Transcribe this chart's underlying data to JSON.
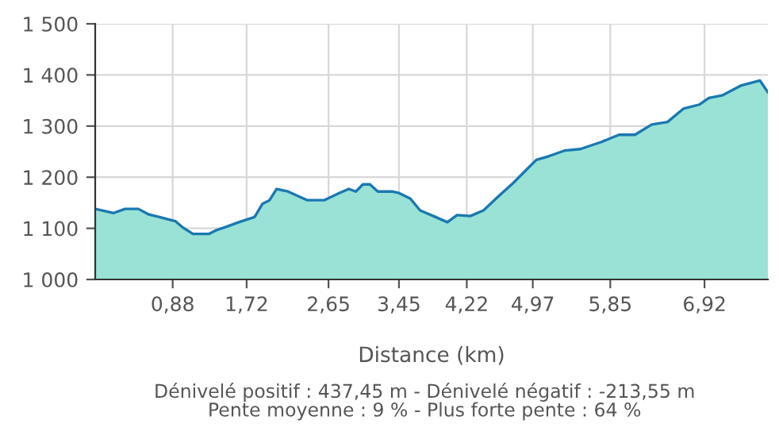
{
  "chart_data": {
    "type": "area",
    "xlabel": "Distance (km)",
    "x": [
      0,
      0.21,
      0.34,
      0.49,
      0.61,
      0.73,
      0.91,
      1.0,
      1.11,
      1.29,
      1.37,
      1.49,
      1.63,
      1.81,
      1.9,
      1.98,
      2.06,
      2.19,
      2.41,
      2.6,
      2.77,
      2.88,
      2.96,
      3.04,
      3.12,
      3.21,
      3.37,
      3.45,
      3.58,
      3.69,
      3.84,
      4.0,
      4.11,
      4.26,
      4.41,
      4.57,
      4.75,
      4.9,
      5.01,
      5.15,
      5.33,
      5.51,
      5.75,
      5.95,
      6.13,
      6.32,
      6.5,
      6.68,
      6.86,
      6.97,
      7.12,
      7.33,
      7.55,
      7.64
    ],
    "series": [
      {
        "color": "#1a78b0",
        "values": [
          1138,
          1130,
          1138,
          1138,
          1127,
          1122,
          1114,
          1101,
          1089,
          1089,
          1096,
          1103,
          1112,
          1122,
          1148,
          1155,
          1177,
          1172,
          1155,
          1155,
          1169,
          1177,
          1172,
          1186,
          1186,
          1172,
          1172,
          1169,
          1158,
          1135,
          1124,
          1112,
          1126,
          1124,
          1135,
          1161,
          1189,
          1215,
          1234,
          1241,
          1252,
          1255,
          1269,
          1283,
          1283,
          1303,
          1308,
          1334,
          1342,
          1355,
          1360,
          1379,
          1389,
          1366
        ]
      }
    ],
    "xlim": [
      0,
      7.64
    ],
    "xticks": [
      {
        "value": 0.88,
        "label": "0,88"
      },
      {
        "value": 1.72,
        "label": "1,72"
      },
      {
        "value": 2.65,
        "label": "2,65"
      },
      {
        "value": 3.45,
        "label": "3,45"
      },
      {
        "value": 4.22,
        "label": "4,22"
      },
      {
        "value": 4.97,
        "label": "4,97"
      },
      {
        "value": 5.85,
        "label": "5,85"
      },
      {
        "value": 6.92,
        "label": "6,92"
      }
    ],
    "ylim": [
      1000,
      1500
    ],
    "yticks": [
      {
        "value": 1000,
        "label": "1 000"
      },
      {
        "value": 1100,
        "label": "1 100"
      },
      {
        "value": 1200,
        "label": "1 200"
      },
      {
        "value": 1300,
        "label": "1 300"
      },
      {
        "value": 1400,
        "label": "1 400"
      },
      {
        "value": 1500,
        "label": "1 500"
      }
    ],
    "grid": true,
    "annotations": [
      "Dénivelé positif : 437,45 m - Dénivelé négatif : -213,55 m",
      "Pente moyenne : 9 % - Plus forte pente : 64 %"
    ]
  }
}
